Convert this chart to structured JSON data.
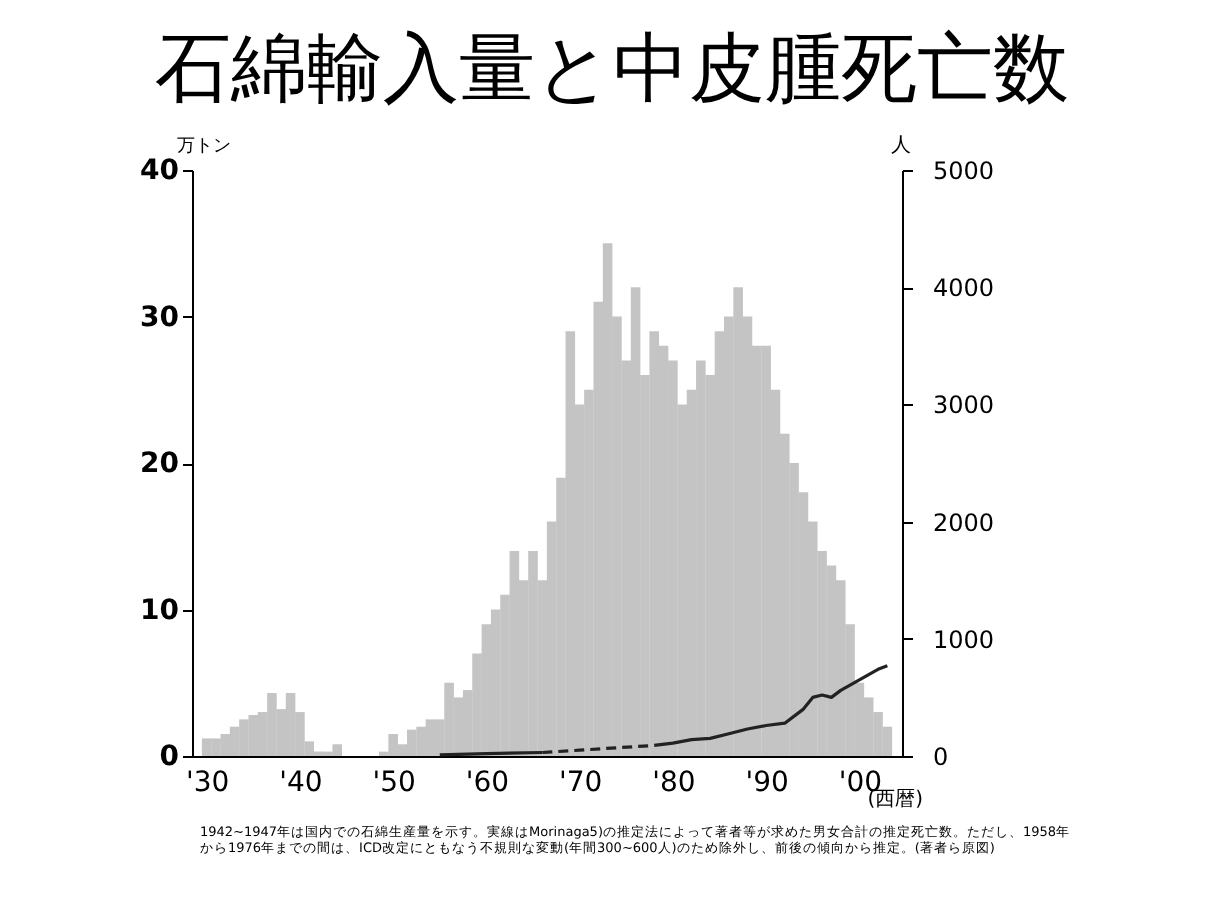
{
  "chart_data": {
    "type": "bar",
    "title": "石綿輸入量と中皮腫死亡数",
    "ylabel": "万トン",
    "y2label": "人",
    "xlabel": "(西暦)",
    "annotations": [
      "1942~1947年は国内での石綿生産量を示す。実線はMorinaga5)の推定法によって著者等が求めた男女合計の推定死亡数。ただし、1958年から1976年までの間は、ICD改定にともなう不規則な変動(年間300~600人)のため除外し、前後の傾向から推定。(著者ら原図)"
    ],
    "x": [
      1930,
      1931,
      1932,
      1933,
      1934,
      1935,
      1936,
      1937,
      1938,
      1939,
      1940,
      1941,
      1942,
      1943,
      1944,
      1945,
      1946,
      1947,
      1948,
      1949,
      1950,
      1951,
      1952,
      1953,
      1954,
      1955,
      1956,
      1957,
      1958,
      1959,
      1960,
      1961,
      1962,
      1963,
      1964,
      1965,
      1966,
      1967,
      1968,
      1969,
      1970,
      1971,
      1972,
      1973,
      1974,
      1975,
      1976,
      1977,
      1978,
      1979,
      1980,
      1981,
      1982,
      1983,
      1984,
      1985,
      1986,
      1987,
      1988,
      1989,
      1990,
      1991,
      1992,
      1993,
      1994,
      1995,
      1996,
      1997,
      1998,
      1999,
      2000,
      2001,
      2002,
      2003
    ],
    "xlim": [
      1929.5,
      2003.5
    ],
    "xticks": [
      {
        "value": 1930,
        "label": "'30"
      },
      {
        "value": 1940,
        "label": "'40"
      },
      {
        "value": 1950,
        "label": "'50"
      },
      {
        "value": 1960,
        "label": "'60"
      },
      {
        "value": 1970,
        "label": "'70"
      },
      {
        "value": 1980,
        "label": "'80"
      },
      {
        "value": 1990,
        "label": "'90"
      },
      {
        "value": 2000,
        "label": "'00"
      }
    ],
    "ylim": [
      0,
      40
    ],
    "yticks": [
      0,
      10,
      20,
      30,
      40
    ],
    "y2lim": [
      0,
      5000
    ],
    "y2ticks": [
      0,
      1000,
      2000,
      3000,
      4000,
      5000
    ],
    "series": [
      {
        "color": "#c4c4c4",
        "values": [
          1.2,
          1.2,
          1.5,
          2,
          2.5,
          2.8,
          3,
          4.3,
          3.2,
          4.3,
          3,
          1,
          0.3,
          0.3,
          0.8,
          null,
          null,
          null,
          null,
          0.3,
          1.5,
          0.8,
          1.8,
          2,
          2.5,
          2.5,
          5,
          4,
          4.5,
          7,
          9,
          10,
          11,
          14,
          12,
          14,
          12,
          16,
          19,
          29,
          24,
          25,
          31,
          35,
          30,
          27,
          32,
          26,
          29,
          28,
          27,
          24,
          25,
          27,
          26,
          29,
          30,
          32,
          30,
          28,
          28,
          25,
          22,
          20,
          18,
          16,
          14,
          13,
          12,
          9,
          5,
          4,
          3,
          2
        ]
      },
      {
        "type": "line",
        "axis": "y2",
        "color": "#222222",
        "line_style": "solid",
        "x": [
          1955,
          1960,
          1966
        ],
        "values": [
          10,
          20,
          30
        ]
      },
      {
        "type": "line",
        "axis": "y2",
        "color": "#222222",
        "line_style": "dashed",
        "x": [
          1966,
          1970,
          1974,
          1978
        ],
        "values": [
          30,
          50,
          70,
          90
        ]
      },
      {
        "type": "line",
        "axis": "y2",
        "color": "#222222",
        "line_style": "solid",
        "x": [
          1978,
          1980,
          1982,
          1984,
          1986,
          1988,
          1990,
          1992,
          1994,
          1995,
          1996,
          1997,
          1998,
          2000,
          2002,
          2003
        ],
        "values": [
          90,
          110,
          140,
          150,
          190,
          230,
          260,
          280,
          400,
          500,
          520,
          500,
          560,
          650,
          740,
          770
        ]
      }
    ]
  }
}
